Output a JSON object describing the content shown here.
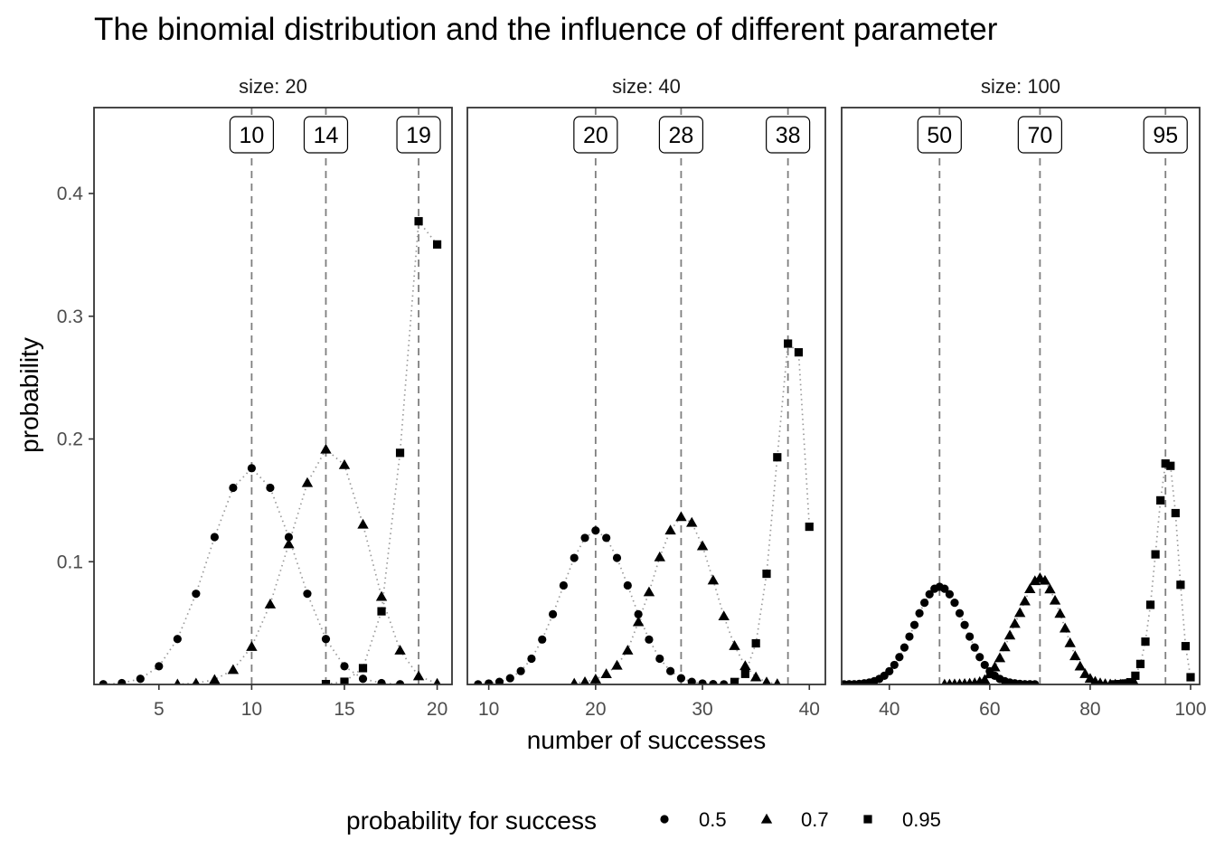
{
  "chart_data": {
    "type": "scatter",
    "title": "The binomial distribution and the influence of different parameter",
    "xlabel": "number of successes",
    "ylabel": "probability",
    "legend": {
      "title": "probability for success",
      "placement": "bottom",
      "entries": [
        {
          "label": "0.5",
          "shape": "circle"
        },
        {
          "label": "0.7",
          "shape": "triangle"
        },
        {
          "label": "0.95",
          "shape": "square"
        }
      ]
    },
    "colors": {
      "points": "#000000",
      "connector": "#999999",
      "reference_line": "#7f7f7f",
      "panel_border": "#333333"
    },
    "yticks": [
      0.1,
      0.2,
      0.3,
      0.4
    ],
    "ylim": [
      0,
      0.47
    ],
    "grid": false,
    "connector_style": "dotted",
    "reference_line_style": "dashed",
    "panels": [
      {
        "strip": "size: 20",
        "size": 20,
        "xlim": [
          1.5,
          20.8
        ],
        "xticks": [
          5,
          10,
          15,
          20
        ],
        "modes": [
          {
            "label": "10",
            "x": 10
          },
          {
            "label": "14",
            "x": 14
          },
          {
            "label": "19",
            "x": 19
          }
        ],
        "series": [
          {
            "p": 0.5,
            "shape": "circle",
            "x": [
              2,
              3,
              4,
              5,
              6,
              7,
              8,
              9,
              10,
              11,
              12,
              13,
              14,
              15,
              16,
              17,
              18
            ],
            "y": [
              0.0002,
              0.0011,
              0.0046,
              0.0148,
              0.037,
              0.0739,
              0.1201,
              0.1602,
              0.1762,
              0.1602,
              0.1201,
              0.0739,
              0.037,
              0.0148,
              0.0046,
              0.0011,
              0.0002
            ]
          },
          {
            "p": 0.7,
            "shape": "triangle",
            "x": [
              6,
              7,
              8,
              9,
              10,
              11,
              12,
              13,
              14,
              15,
              16,
              17,
              18,
              19,
              20
            ],
            "y": [
              0.0002,
              0.001,
              0.0039,
              0.012,
              0.0308,
              0.0654,
              0.1144,
              0.1643,
              0.1916,
              0.1789,
              0.1304,
              0.0716,
              0.0278,
              0.0068,
              0.0008
            ]
          },
          {
            "p": 0.95,
            "shape": "square",
            "x": [
              14,
              15,
              16,
              17,
              18,
              19,
              20
            ],
            "y": [
              0.0003,
              0.0022,
              0.0133,
              0.0596,
              0.1887,
              0.3774,
              0.3585
            ]
          }
        ]
      },
      {
        "strip": "size: 40",
        "size": 40,
        "xlim": [
          8,
          41.5
        ],
        "xticks": [
          10,
          20,
          30,
          40
        ],
        "modes": [
          {
            "label": "20",
            "x": 20
          },
          {
            "label": "28",
            "x": 28
          },
          {
            "label": "38",
            "x": 38
          }
        ],
        "series": [
          {
            "p": 0.5,
            "shape": "circle",
            "x": [
              9,
              10,
              11,
              12,
              13,
              14,
              15,
              16,
              17,
              18,
              19,
              20,
              21,
              22,
              23,
              24,
              25,
              26,
              27,
              28,
              29,
              30,
              31,
              32
            ],
            "y": [
              0.0001,
              0.0008,
              0.0021,
              0.0051,
              0.0109,
              0.021,
              0.0366,
              0.0572,
              0.0807,
              0.1031,
              0.1194,
              0.1254,
              0.1194,
              0.1031,
              0.0807,
              0.0572,
              0.0366,
              0.021,
              0.0109,
              0.0051,
              0.0021,
              0.0008,
              0.0003,
              0.0001
            ]
          },
          {
            "p": 0.7,
            "shape": "triangle",
            "x": [
              18,
              19,
              20,
              21,
              22,
              23,
              24,
              25,
              26,
              27,
              28,
              29,
              30,
              31,
              32,
              33,
              34,
              35,
              36,
              37
            ],
            "y": [
              0.0009,
              0.0021,
              0.0043,
              0.0086,
              0.0155,
              0.0278,
              0.0509,
              0.0753,
              0.1038,
              0.1256,
              0.1366,
              0.1319,
              0.1128,
              0.0849,
              0.0557,
              0.0315,
              0.0151,
              0.006,
              0.0019,
              0.0005
            ]
          },
          {
            "p": 0.95,
            "shape": "square",
            "x": [
              33,
              34,
              35,
              36,
              37,
              38,
              39,
              40
            ],
            "y": [
              0.002,
              0.0086,
              0.0335,
              0.0902,
              0.1851,
              0.2777,
              0.2706,
              0.1285
            ]
          }
        ]
      },
      {
        "strip": "size: 100",
        "size": 100,
        "xlim": [
          30.5,
          101.8
        ],
        "xticks": [
          40,
          60,
          80,
          100
        ],
        "modes": [
          {
            "label": "50",
            "x": 50
          },
          {
            "label": "70",
            "x": 70
          },
          {
            "label": "95",
            "x": 95
          }
        ],
        "series": [
          {
            "p": 0.5,
            "shape": "circle",
            "x": [
              31,
              32,
              33,
              34,
              35,
              36,
              37,
              38,
              39,
              40,
              41,
              42,
              43,
              44,
              45,
              46,
              47,
              48,
              49,
              50,
              51,
              52,
              53,
              54,
              55,
              56,
              57,
              58,
              59,
              60,
              61,
              62,
              63,
              64,
              65,
              66,
              67,
              68,
              69
            ],
            "y": [
              0.0001,
              0.0002,
              0.0002,
              0.0005,
              0.0009,
              0.0016,
              0.0027,
              0.0045,
              0.0071,
              0.0108,
              0.0159,
              0.0223,
              0.0301,
              0.039,
              0.0485,
              0.058,
              0.0666,
              0.0735,
              0.078,
              0.0796,
              0.078,
              0.0735,
              0.0666,
              0.058,
              0.0485,
              0.039,
              0.0301,
              0.0223,
              0.0159,
              0.0108,
              0.0071,
              0.0045,
              0.0027,
              0.0016,
              0.0009,
              0.0005,
              0.0002,
              0.0002,
              0.0001
            ]
          },
          {
            "p": 0.7,
            "shape": "triangle",
            "x": [
              51,
              52,
              53,
              54,
              55,
              56,
              57,
              58,
              59,
              60,
              61,
              62,
              63,
              64,
              65,
              66,
              67,
              68,
              69,
              70,
              71,
              72,
              73,
              74,
              75,
              76,
              77,
              78,
              79,
              80,
              81,
              82,
              83,
              84,
              85,
              86,
              87,
              88,
              89
            ],
            "y": [
              0.0001,
              0.0002,
              0.0003,
              0.0004,
              0.0006,
              0.0009,
              0.0012,
              0.0022,
              0.0038,
              0.0085,
              0.0141,
              0.0216,
              0.0305,
              0.0401,
              0.0496,
              0.0584,
              0.0679,
              0.0778,
              0.0844,
              0.0868,
              0.0847,
              0.0776,
              0.0685,
              0.0578,
              0.0458,
              0.0338,
              0.0232,
              0.0148,
              0.0087,
              0.0048,
              0.0024,
              0.0011,
              0.0005,
              0.0002,
              0.0001,
              0.0001,
              0.0001,
              0.0001,
              0.0001
            ]
          },
          {
            "p": 0.95,
            "shape": "square",
            "x": [
              85,
              86,
              87,
              88,
              89,
              90,
              91,
              92,
              93,
              94,
              95,
              96,
              97,
              98,
              99,
              100
            ],
            "y": [
              0.0001,
              0.0003,
              0.0008,
              0.0018,
              0.0071,
              0.0167,
              0.0349,
              0.0649,
              0.106,
              0.15,
              0.18,
              0.1781,
              0.1396,
              0.0812,
              0.0312,
              0.0059
            ]
          }
        ]
      }
    ]
  }
}
